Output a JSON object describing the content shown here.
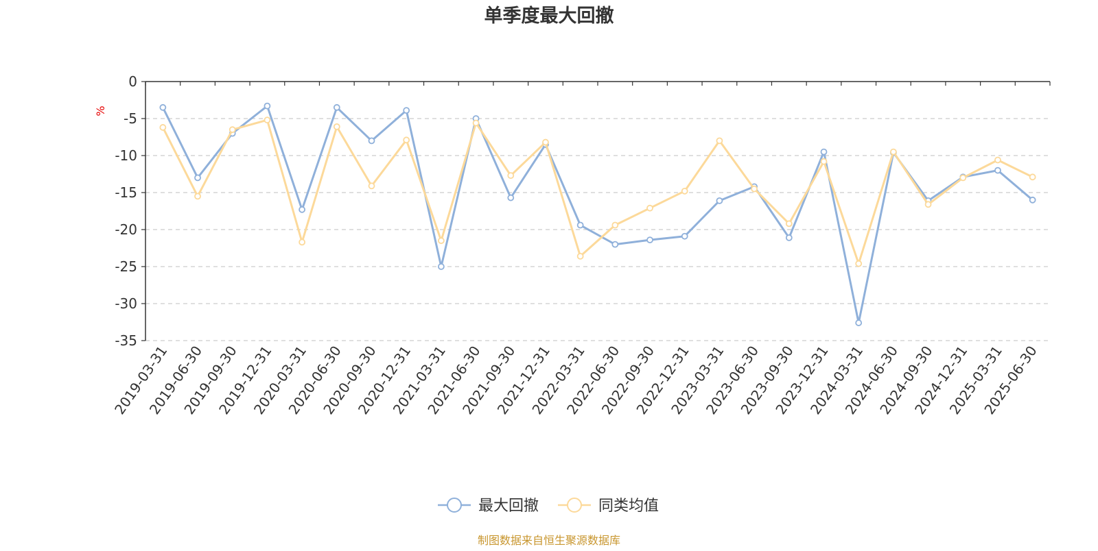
{
  "chart_data": {
    "type": "line",
    "title": "单季度最大回撤",
    "unit_label": "%",
    "ylim": [
      -35,
      0
    ],
    "ytick_step": 5,
    "grid": "horizontal-dashed",
    "legend_position": "bottom-center",
    "categories": [
      "2019-03-31",
      "2019-06-30",
      "2019-09-30",
      "2019-12-31",
      "2020-03-31",
      "2020-06-30",
      "2020-09-30",
      "2020-12-31",
      "2021-03-31",
      "2021-06-30",
      "2021-09-30",
      "2021-12-31",
      "2022-03-31",
      "2022-06-30",
      "2022-09-30",
      "2022-12-31",
      "2023-03-31",
      "2023-06-30",
      "2023-09-30",
      "2023-12-31",
      "2024-03-31",
      "2024-06-30",
      "2024-09-30",
      "2024-12-31",
      "2025-03-31",
      "2025-06-30"
    ],
    "series": [
      {
        "name": "最大回撤",
        "color": "#8fb0da",
        "values": [
          -3.5,
          -13.0,
          -7.0,
          -3.3,
          -17.3,
          -3.5,
          -8.0,
          -3.9,
          -25.0,
          -5.0,
          -15.7,
          -8.5,
          -19.4,
          -22.0,
          -21.4,
          -20.9,
          -16.1,
          -14.2,
          -21.1,
          -9.5,
          -32.6,
          -9.6,
          -16.1,
          -12.9,
          -12.0,
          -16.0
        ]
      },
      {
        "name": "同类均值",
        "color": "#fcd99a",
        "values": [
          -6.2,
          -15.5,
          -6.5,
          -5.2,
          -21.7,
          -6.1,
          -14.1,
          -7.9,
          -21.5,
          -5.6,
          -12.7,
          -8.2,
          -23.6,
          -19.4,
          -17.1,
          -14.8,
          -8.0,
          -14.5,
          -19.2,
          -10.8,
          -24.6,
          -9.5,
          -16.6,
          -13.0,
          -10.6,
          -12.9
        ]
      }
    ]
  },
  "source_text": "制图数据来自恒生聚源数据库",
  "source_color": "#c8962e"
}
